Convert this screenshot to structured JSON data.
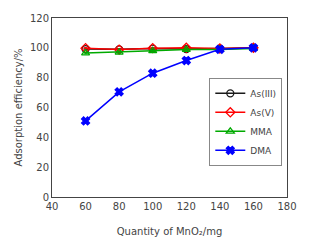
{
  "chart_data": {
    "type": "line",
    "xlabel": "Quantity of MnO₂/mg",
    "ylabel": "Adsorption efficiency/%",
    "x": [
      60,
      80,
      100,
      120,
      140,
      160
    ],
    "series": [
      {
        "name": "As(III)",
        "color": "#1a1a1a",
        "marker": "circle-open",
        "values": [
          99.2,
          99.0,
          99.5,
          99.2,
          99.5,
          100.0
        ],
        "errors": [
          0.5,
          0.5,
          0.5,
          0.5,
          0.5,
          0.3
        ]
      },
      {
        "name": "As(V)",
        "color": "#ff0000",
        "marker": "diamond-open",
        "values": [
          99.8,
          98.8,
          99.8,
          100.0,
          99.5,
          100.0
        ],
        "errors": [
          0.5,
          0.5,
          0.5,
          0.5,
          0.5,
          0.3
        ]
      },
      {
        "name": "MMA",
        "color": "#00aa00",
        "marker": "triangle-up-open",
        "values": [
          96.5,
          97.0,
          98.0,
          98.8,
          98.8,
          99.5
        ],
        "errors": [
          0.5,
          0.5,
          0.5,
          0.5,
          0.5,
          0.3
        ]
      },
      {
        "name": "DMA",
        "color": "#0000ff",
        "marker": "x",
        "values": [
          51.0,
          70.5,
          83.0,
          91.5,
          99.0,
          100.0
        ],
        "errors": [
          0.8,
          0.8,
          0.8,
          1.5,
          0.8,
          0.3
        ]
      }
    ],
    "xlim": [
      40,
      180
    ],
    "ylim": [
      0,
      120
    ],
    "xticks": [
      40,
      60,
      80,
      100,
      120,
      140,
      160,
      180
    ],
    "yticks": [
      0,
      20,
      40,
      60,
      80,
      100,
      120
    ],
    "grid": false,
    "legend": "right"
  }
}
